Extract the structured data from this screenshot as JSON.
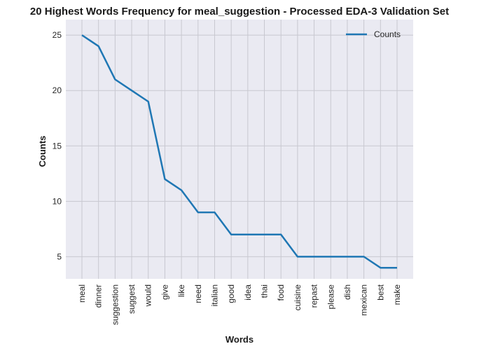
{
  "chart_data": {
    "type": "line",
    "title": "20 Highest Words Frequency for meal_suggestion - Processed EDA-3 Validation Set",
    "xlabel": "Words",
    "ylabel": "Counts",
    "categories": [
      "meal",
      "dinner",
      "suggestion",
      "suggest",
      "would",
      "give",
      "like",
      "need",
      "italian",
      "good",
      "idea",
      "thai",
      "food",
      "cuisine",
      "repast",
      "please",
      "dish",
      "mexican",
      "best",
      "make"
    ],
    "series": [
      {
        "name": "Counts",
        "values": [
          25,
          24,
          21,
          20,
          19,
          12,
          11,
          9,
          9,
          7,
          7,
          7,
          7,
          5,
          5,
          5,
          5,
          5,
          4,
          4
        ],
        "color": "#1f77b4"
      }
    ],
    "yticks": [
      5,
      10,
      15,
      20,
      25
    ],
    "ylim": [
      3,
      26.4
    ],
    "grid": true,
    "legend_position": "top-right",
    "background_color": "#eaeaf2",
    "grid_color": "#c8c8d0"
  }
}
